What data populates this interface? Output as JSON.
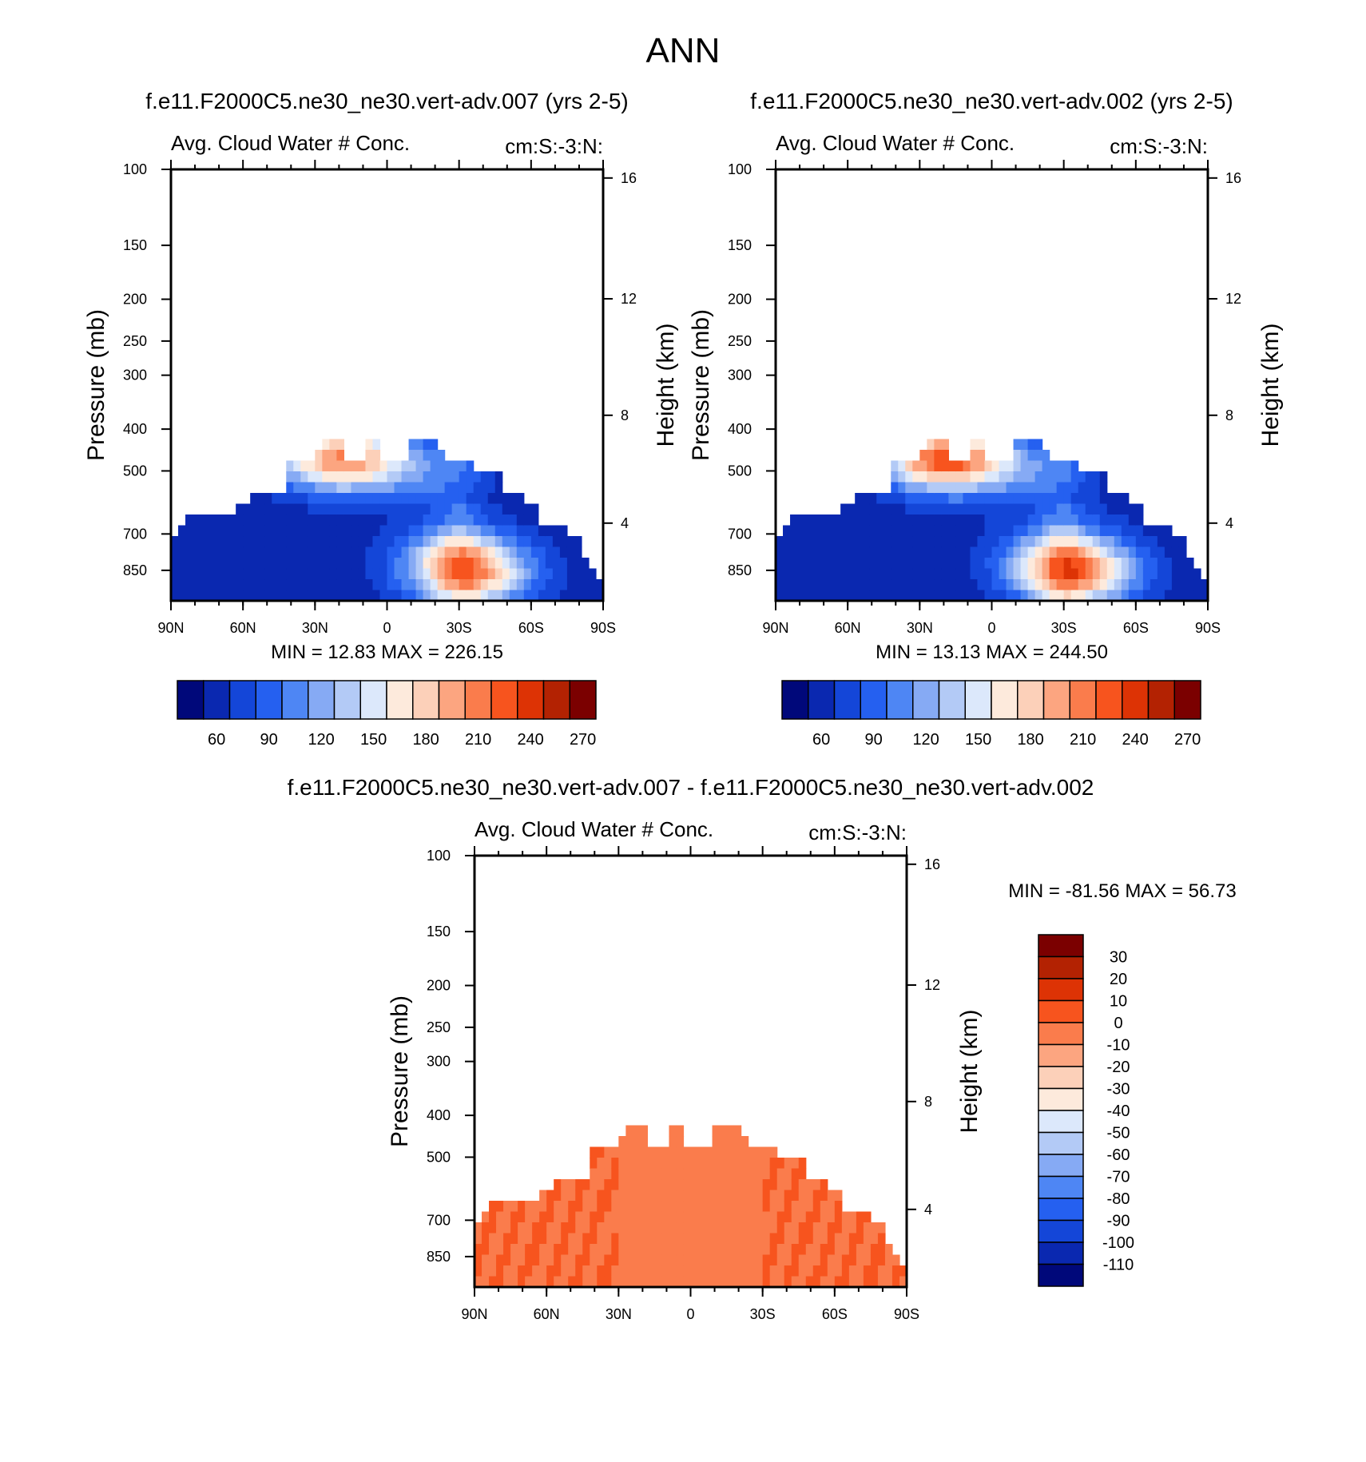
{
  "figure": {
    "title": "ANN"
  },
  "colors": {
    "palette": [
      "#00087a",
      "#0a28b0",
      "#1446d8",
      "#2560f0",
      "#4e86f4",
      "#86aaf4",
      "#b3caf6",
      "#dce8fb",
      "#fdeadc",
      "#fcd0b9",
      "#fca580",
      "#fa7c4c",
      "#f7541e",
      "#dd3305",
      "#b32202",
      "#7b0000"
    ],
    "bg": "#ffffff"
  },
  "chart_data": [
    {
      "id": "panel-1",
      "type": "heatmap",
      "title": "f.e11.F2000C5.ne30_ne30.vert-adv.007 (yrs 2-5)",
      "left_string": "Avg. Cloud Water # Conc.",
      "right_string": "cm:S:-3:N:",
      "ylabel": "Pressure (mb)",
      "y2label": "Height (km)",
      "xticks": [
        "90N",
        "60N",
        "30N",
        "0",
        "30S",
        "60S",
        "90S"
      ],
      "yticks": [
        100,
        150,
        200,
        250,
        300,
        400,
        500,
        700,
        850
      ],
      "ytick_labels": [
        "100",
        "150",
        "200",
        "250",
        "300",
        "400",
        "500",
        "700",
        "850"
      ],
      "y2ticks": [
        "16",
        "12",
        "8",
        "4"
      ],
      "ylim": [
        1000,
        100
      ],
      "xlim": [
        90,
        -90
      ],
      "y_scale": "log",
      "stats": "MIN =  12.83  MAX = 226.15",
      "min": 12.83,
      "max": 226.15,
      "levels": [
        60,
        90,
        120,
        150,
        180,
        210,
        240,
        270
      ],
      "levels_all": [
        45,
        60,
        75,
        90,
        105,
        120,
        135,
        150,
        165,
        180,
        195,
        210,
        225,
        240,
        255,
        270
      ],
      "colorbar_labels": [
        "60",
        "90",
        "120",
        "150",
        "180",
        "210",
        "240",
        "270"
      ],
      "colorbar_orientation": "horizontal",
      "base_value": 50,
      "blobs": [
        {
          "x": -35,
          "p": 880,
          "v": 170
        },
        {
          "x": -30,
          "p": 780,
          "v": 120
        },
        {
          "x": -15,
          "p": 500,
          "v": 95
        },
        {
          "x": 20,
          "p": 470,
          "v": 210
        }
      ]
    },
    {
      "id": "panel-2",
      "type": "heatmap",
      "title": "f.e11.F2000C5.ne30_ne30.vert-adv.002 (yrs 2-5)",
      "left_string": "Avg. Cloud Water # Conc.",
      "right_string": "cm:S:-3:N:",
      "ylabel": "Pressure (mb)",
      "y2label": "Height (km)",
      "xticks": [
        "90N",
        "60N",
        "30N",
        "0",
        "30S",
        "60S",
        "90S"
      ],
      "yticks": [
        100,
        150,
        200,
        250,
        300,
        400,
        500,
        700,
        850
      ],
      "ytick_labels": [
        "100",
        "150",
        "200",
        "250",
        "300",
        "400",
        "500",
        "700",
        "850"
      ],
      "y2ticks": [
        "16",
        "12",
        "8",
        "4"
      ],
      "ylim": [
        1000,
        100
      ],
      "xlim": [
        90,
        -90
      ],
      "y_scale": "log",
      "stats": "MIN =  13.13  MAX = 244.50",
      "min": 13.13,
      "max": 244.5,
      "levels": [
        60,
        90,
        120,
        150,
        180,
        210,
        240,
        270
      ],
      "levels_all": [
        45,
        60,
        75,
        90,
        105,
        120,
        135,
        150,
        165,
        180,
        195,
        210,
        225,
        240,
        255,
        270
      ],
      "colorbar_labels": [
        "60",
        "90",
        "120",
        "150",
        "180",
        "210",
        "240",
        "270"
      ],
      "colorbar_orientation": "horizontal",
      "base_value": 50,
      "blobs": [
        {
          "x": -35,
          "p": 880,
          "v": 175
        },
        {
          "x": -30,
          "p": 780,
          "v": 125
        },
        {
          "x": -15,
          "p": 500,
          "v": 95
        },
        {
          "x": 20,
          "p": 470,
          "v": 235
        }
      ]
    },
    {
      "id": "panel-3",
      "type": "heatmap",
      "title": "f.e11.F2000C5.ne30_ne30.vert-adv.007 - f.e11.F2000C5.ne30_ne30.vert-adv.002",
      "left_string": "Avg. Cloud Water # Conc.",
      "right_string": "cm:S:-3:N:",
      "ylabel": "Pressure (mb)",
      "y2label": "Height (km)",
      "xticks": [
        "90N",
        "60N",
        "30N",
        "0",
        "30S",
        "60S",
        "90S"
      ],
      "yticks": [
        100,
        150,
        200,
        250,
        300,
        400,
        500,
        700,
        850
      ],
      "ytick_labels": [
        "100",
        "150",
        "200",
        "250",
        "300",
        "400",
        "500",
        "700",
        "850"
      ],
      "y2ticks": [
        "16",
        "12",
        "8",
        "4"
      ],
      "ylim": [
        1000,
        100
      ],
      "xlim": [
        90,
        -90
      ],
      "y_scale": "log",
      "stats": "MIN = -81.56  MAX =  56.73",
      "min": -81.56,
      "max": 56.73,
      "levels": [
        30,
        20,
        10,
        0,
        -10,
        -20,
        -30,
        -40,
        -50,
        -60,
        -70,
        -80,
        -90,
        -100,
        -110
      ],
      "colorbar_labels": [
        "30",
        "20",
        "10",
        "0",
        "-10",
        "-20",
        "-30",
        "-40",
        "-50",
        "-60",
        "-70",
        "-80",
        "-90",
        "-100",
        "-110"
      ],
      "colorbar_orientation": "vertical",
      "base_value": -2,
      "blobs": []
    }
  ]
}
